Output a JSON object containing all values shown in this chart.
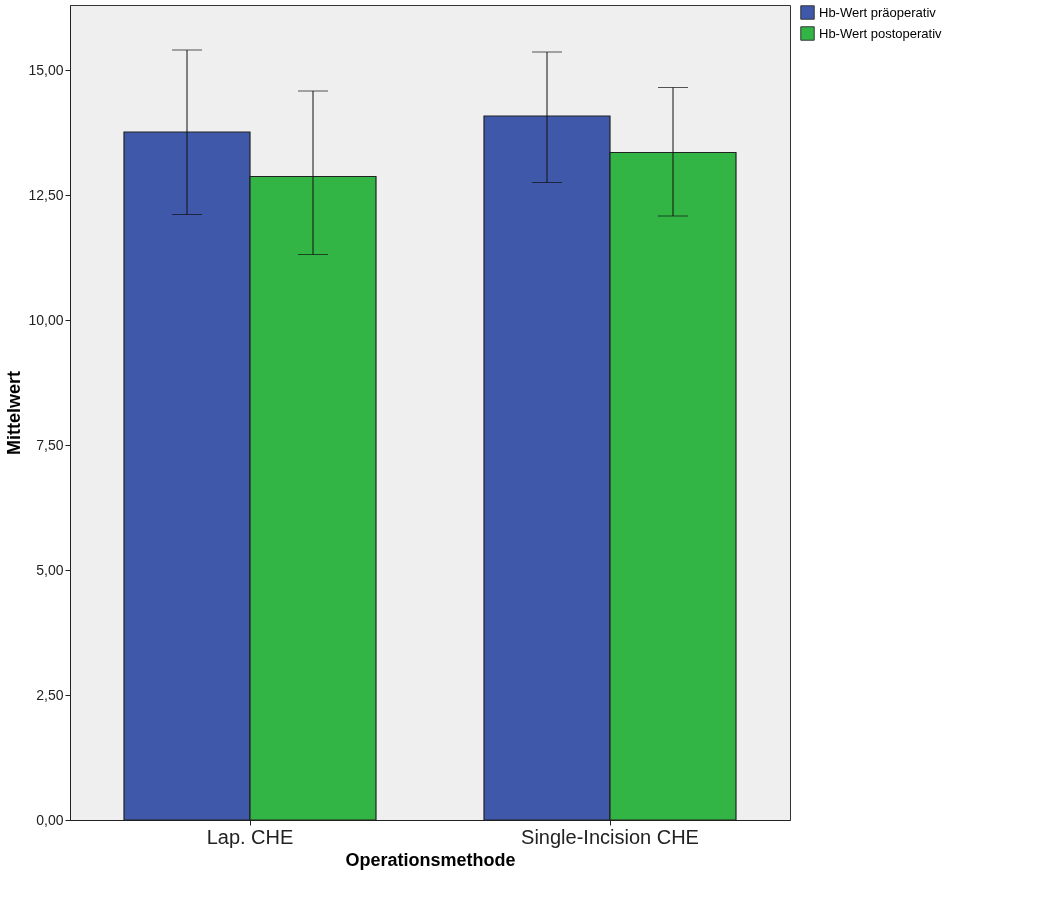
{
  "chart_data": {
    "type": "bar",
    "xlabel": "Operationsmethode",
    "ylabel": "Mittelwert",
    "categories": [
      "Lap. CHE",
      "Single-Incision CHE"
    ],
    "series": [
      {
        "name": "Hb-Wert präoperativ",
        "color": "#3f58aa",
        "values": [
          13.76,
          14.08
        ],
        "errors": [
          [
            12.11,
            15.4
          ],
          [
            12.75,
            15.36
          ]
        ]
      },
      {
        "name": "Hb-Wert postoperativ",
        "color": "#33b546",
        "values": [
          12.87,
          13.35
        ],
        "errors": [
          [
            11.31,
            14.58
          ],
          [
            12.08,
            14.65
          ]
        ]
      }
    ],
    "ylim": [
      0,
      16.3
    ],
    "yticks": [
      {
        "value": 0,
        "label": "0,00"
      },
      {
        "value": 2.5,
        "label": "2,50"
      },
      {
        "value": 5,
        "label": "5,00"
      },
      {
        "value": 7.5,
        "label": "7,50"
      },
      {
        "value": 10,
        "label": "10,00"
      },
      {
        "value": 12.5,
        "label": "12,50"
      },
      {
        "value": 15,
        "label": "15,00"
      }
    ],
    "grid": false,
    "legend": "top right"
  }
}
